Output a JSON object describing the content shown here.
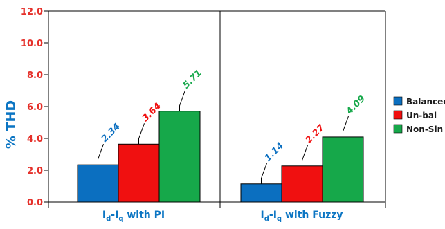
{
  "colors": {
    "balanced": "#0b6fc0",
    "unbal": "#f01010",
    "nonsin": "#16a84a",
    "axis_text": "#e5302a",
    "label_text": "#0b75c3"
  },
  "chart_data": {
    "type": "bar",
    "title": "",
    "ylabel": "% THD",
    "ylim": [
      0,
      12
    ],
    "yticks": [
      "0.0",
      "2.0",
      "4.0",
      "6.0",
      "8.0",
      "10.0",
      "12.0"
    ],
    "categories": [
      {
        "base": "I",
        "sub1": "d",
        "mid": "-I",
        "sub2": "q",
        "tail": " with PI"
      },
      {
        "base": "I",
        "sub1": "d",
        "mid": "-I",
        "sub2": "q",
        "tail": " with Fuzzy"
      }
    ],
    "series": [
      {
        "name": "Balanced",
        "values": [
          2.34,
          1.14
        ],
        "labels": [
          "2.34",
          "1.14"
        ]
      },
      {
        "name": "Un-bal",
        "values": [
          3.64,
          2.27
        ],
        "labels": [
          "3.64",
          "2.27"
        ]
      },
      {
        "name": "Non-Sin",
        "values": [
          5.71,
          4.09
        ],
        "labels": [
          "5.71",
          "4.09"
        ]
      }
    ],
    "grid": false,
    "legend": "right"
  }
}
